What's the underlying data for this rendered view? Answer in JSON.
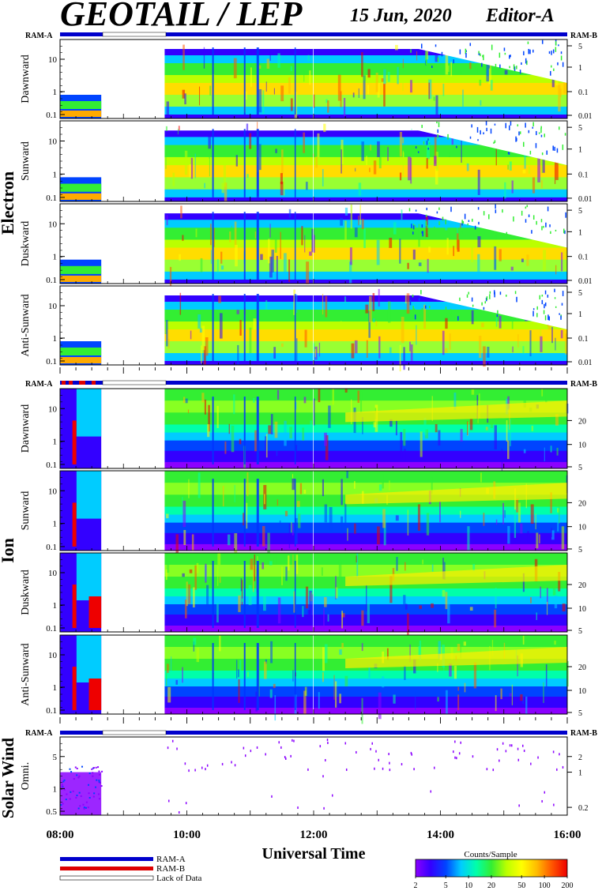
{
  "header": {
    "title": "GEOTAIL / LEP",
    "date": "15 Jun, 2020",
    "editor": "Editor-A"
  },
  "ram_labels": {
    "left": "RAM-A",
    "right": "RAM-B"
  },
  "groups": [
    {
      "name": "Electron",
      "panels": [
        "Dawnward",
        "Sunward",
        "Duskward",
        "Anti-Sunward"
      ]
    },
    {
      "name": "Ion",
      "panels": [
        "Dawnward",
        "Sunward",
        "Duskward",
        "Anti-Sunward"
      ]
    },
    {
      "name": "Solar Wind",
      "panels": [
        "Omni."
      ]
    }
  ],
  "colors": {
    "ram_a": "#0000cc",
    "ram_b": "#dd0000",
    "lack_of_data": "#ffffff",
    "colorscale": [
      "#8b00ff",
      "#3300ff",
      "#0044ff",
      "#00ccff",
      "#00ffaa",
      "#33ee33",
      "#bbff00",
      "#ffff00",
      "#ffbb00",
      "#ff5500",
      "#ee0000"
    ]
  },
  "chart_data": {
    "type": "heatmap",
    "xlabel": "Universal Time",
    "x_ticks": [
      "08:00",
      "10:00",
      "12:00",
      "14:00",
      "16:00"
    ],
    "x_range_hours": [
      8,
      16
    ],
    "data_gap_hours": [
      8.65,
      9.65
    ],
    "panels": [
      {
        "group": "Electron",
        "label": "Dawnward",
        "y_ticks_left": [
          "10",
          "1",
          "0.1"
        ],
        "y_ticks_right": [
          "5",
          "1",
          "0.1",
          "0.01"
        ],
        "log": true
      },
      {
        "group": "Electron",
        "label": "Sunward",
        "y_ticks_left": [
          "10",
          "1",
          "0.1"
        ],
        "y_ticks_right": [
          "5",
          "1",
          "0.1",
          "0.01"
        ],
        "log": true
      },
      {
        "group": "Electron",
        "label": "Duskward",
        "y_ticks_left": [
          "10",
          "1",
          "0.1"
        ],
        "y_ticks_right": [
          "5",
          "1",
          "0.1",
          "0.01"
        ],
        "log": true
      },
      {
        "group": "Electron",
        "label": "Anti-Sunward",
        "y_ticks_left": [
          "10",
          "1",
          "0.1"
        ],
        "y_ticks_right": [
          "5",
          "1",
          "0.1",
          "0.01"
        ],
        "log": true
      },
      {
        "group": "Ion",
        "label": "Dawnward",
        "y_ticks_left": [
          "10",
          "1",
          "0.1"
        ],
        "y_ticks_right": [
          "20",
          "10",
          "5"
        ],
        "log": true
      },
      {
        "group": "Ion",
        "label": "Sunward",
        "y_ticks_left": [
          "10",
          "1",
          "0.1"
        ],
        "y_ticks_right": [
          "20",
          "10",
          "5"
        ],
        "log": true
      },
      {
        "group": "Ion",
        "label": "Duskward",
        "y_ticks_left": [
          "10",
          "1",
          "0.1"
        ],
        "y_ticks_right": [
          "20",
          "10",
          "5"
        ],
        "log": true
      },
      {
        "group": "Ion",
        "label": "Anti-Sunward",
        "y_ticks_left": [
          "10",
          "1",
          "0.1"
        ],
        "y_ticks_right": [
          "20",
          "10",
          "5"
        ],
        "log": true
      },
      {
        "group": "Solar Wind",
        "label": "Omni.",
        "y_ticks_left": [
          "5",
          "1",
          "0.5"
        ],
        "y_ticks_right": [
          "2",
          "1",
          "0.2"
        ],
        "log": true
      }
    ],
    "colorbar": {
      "title": "Counts/Sample",
      "ticks": [
        "2",
        "5",
        "10",
        "20",
        "50",
        "100",
        "200"
      ],
      "log": true,
      "range": [
        2,
        200
      ]
    },
    "legend": {
      "placement": "bottom-left",
      "items": [
        "RAM-A",
        "RAM-B",
        "Lack of Data"
      ]
    }
  }
}
